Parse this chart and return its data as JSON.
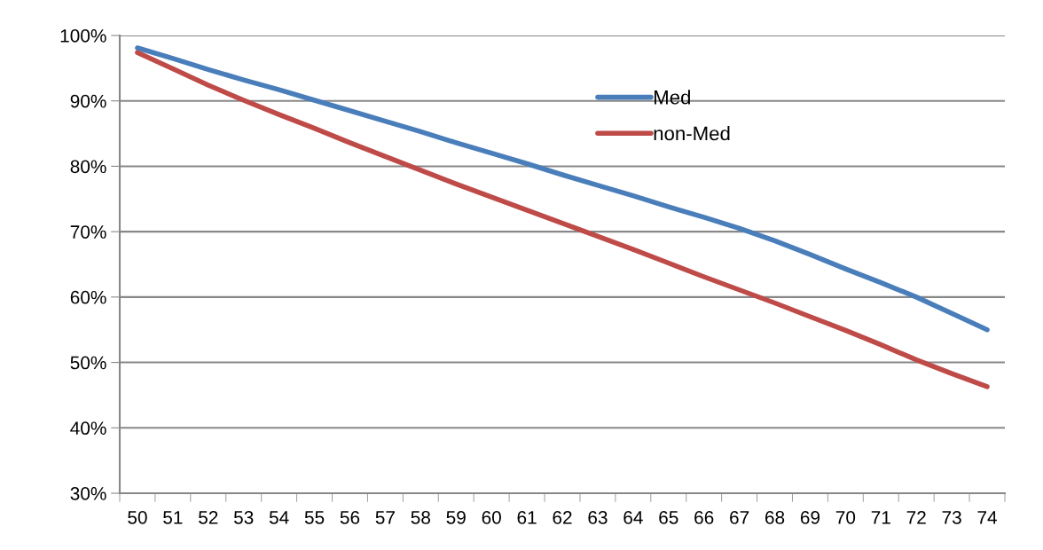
{
  "chart_data": {
    "type": "line",
    "categories": [
      "50",
      "51",
      "52",
      "53",
      "54",
      "55",
      "56",
      "57",
      "58",
      "59",
      "60",
      "61",
      "62",
      "63",
      "64",
      "65",
      "66",
      "67",
      "68",
      "69",
      "70",
      "71",
      "72",
      "73",
      "74"
    ],
    "series": [
      {
        "name": "Med",
        "color": "#4a7ebb",
        "values": [
          98.1,
          96.5,
          94.8,
          93.2,
          91.7,
          90.1,
          88.5,
          86.9,
          85.3,
          83.6,
          82.0,
          80.4,
          78.7,
          77.1,
          75.5,
          73.8,
          72.2,
          70.5,
          68.6,
          66.5,
          64.3,
          62.2,
          60.0,
          57.5,
          55.0
        ]
      },
      {
        "name": "non-Med",
        "color": "#be4b48",
        "values": [
          97.4,
          94.9,
          92.4,
          90.1,
          87.9,
          85.8,
          83.6,
          81.5,
          79.4,
          77.3,
          75.3,
          73.3,
          71.3,
          69.3,
          67.3,
          65.2,
          63.1,
          61.1,
          59.1,
          57.0,
          54.9,
          52.7,
          50.4,
          48.3,
          46.3
        ]
      }
    ],
    "ylim": [
      30,
      100
    ],
    "yticks": [
      {
        "value": 30,
        "label": "30%"
      },
      {
        "value": 40,
        "label": "40%"
      },
      {
        "value": 50,
        "label": "50%"
      },
      {
        "value": 60,
        "label": "60%"
      },
      {
        "value": 70,
        "label": "70%"
      },
      {
        "value": 80,
        "label": "80%"
      },
      {
        "value": 90,
        "label": "90%"
      },
      {
        "value": 100,
        "label": "100%"
      }
    ],
    "grid": "y",
    "legend": "top right",
    "marker": "none",
    "line_style": "solid"
  }
}
